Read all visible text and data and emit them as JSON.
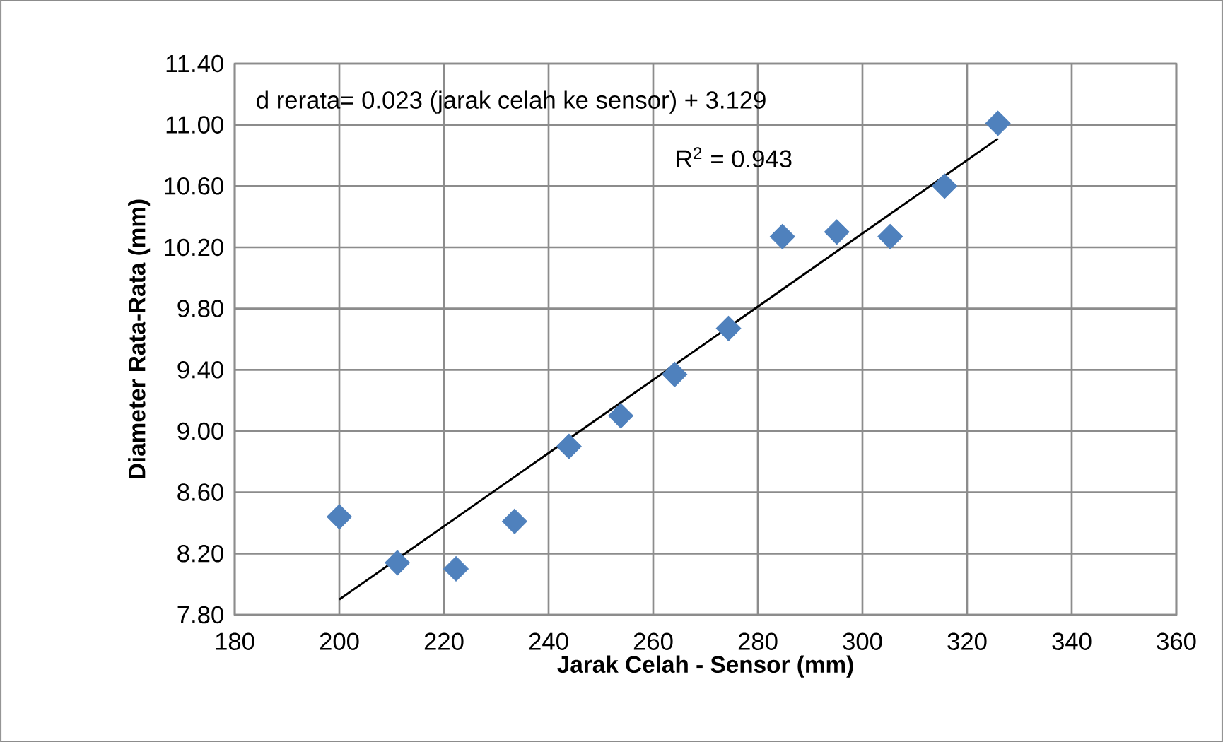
{
  "chart_data": {
    "type": "scatter",
    "xlabel": "Jarak Celah - Sensor (mm)",
    "ylabel": "Diameter Rata-Rata (mm)",
    "xlim": [
      180,
      360
    ],
    "ylim": [
      7.8,
      11.4
    ],
    "xticks": [
      180,
      200,
      220,
      240,
      260,
      280,
      300,
      320,
      340,
      360
    ],
    "yticks": [
      {
        "value": 7.8,
        "label": "7.80"
      },
      {
        "value": 8.2,
        "label": "8.20"
      },
      {
        "value": 8.6,
        "label": "8.60"
      },
      {
        "value": 9.0,
        "label": "9.00"
      },
      {
        "value": 9.4,
        "label": "9.40"
      },
      {
        "value": 9.8,
        "label": "9.80"
      },
      {
        "value": 10.2,
        "label": "10.20"
      },
      {
        "value": 10.6,
        "label": "10.60"
      },
      {
        "value": 11.0,
        "label": "11.00"
      },
      {
        "value": 11.4,
        "label": "11.40"
      }
    ],
    "grid": true,
    "marker": "diamond",
    "annotations": [
      "d rerata= 0.023 (jarak celah ke sensor) + 3.129",
      "R$^{2}$ = 0.943"
    ],
    "series": [
      {
        "color": "#4f81bd",
        "x": [
          200,
          211.1,
          222.3,
          233.5,
          243.9,
          253.8,
          264.1,
          274.4,
          284.7,
          295.1,
          305.3,
          315.7,
          325.9
        ],
        "values": [
          8.44,
          8.14,
          8.1,
          8.41,
          8.9,
          9.1,
          9.37,
          9.67,
          10.27,
          10.3,
          10.27,
          10.6,
          11.01
        ]
      },
      {
        "type": "line",
        "color": "#000000",
        "marker": "none",
        "line_style": "solid",
        "x": [
          200,
          325.9
        ],
        "values": [
          7.9,
          10.91
        ]
      }
    ]
  }
}
